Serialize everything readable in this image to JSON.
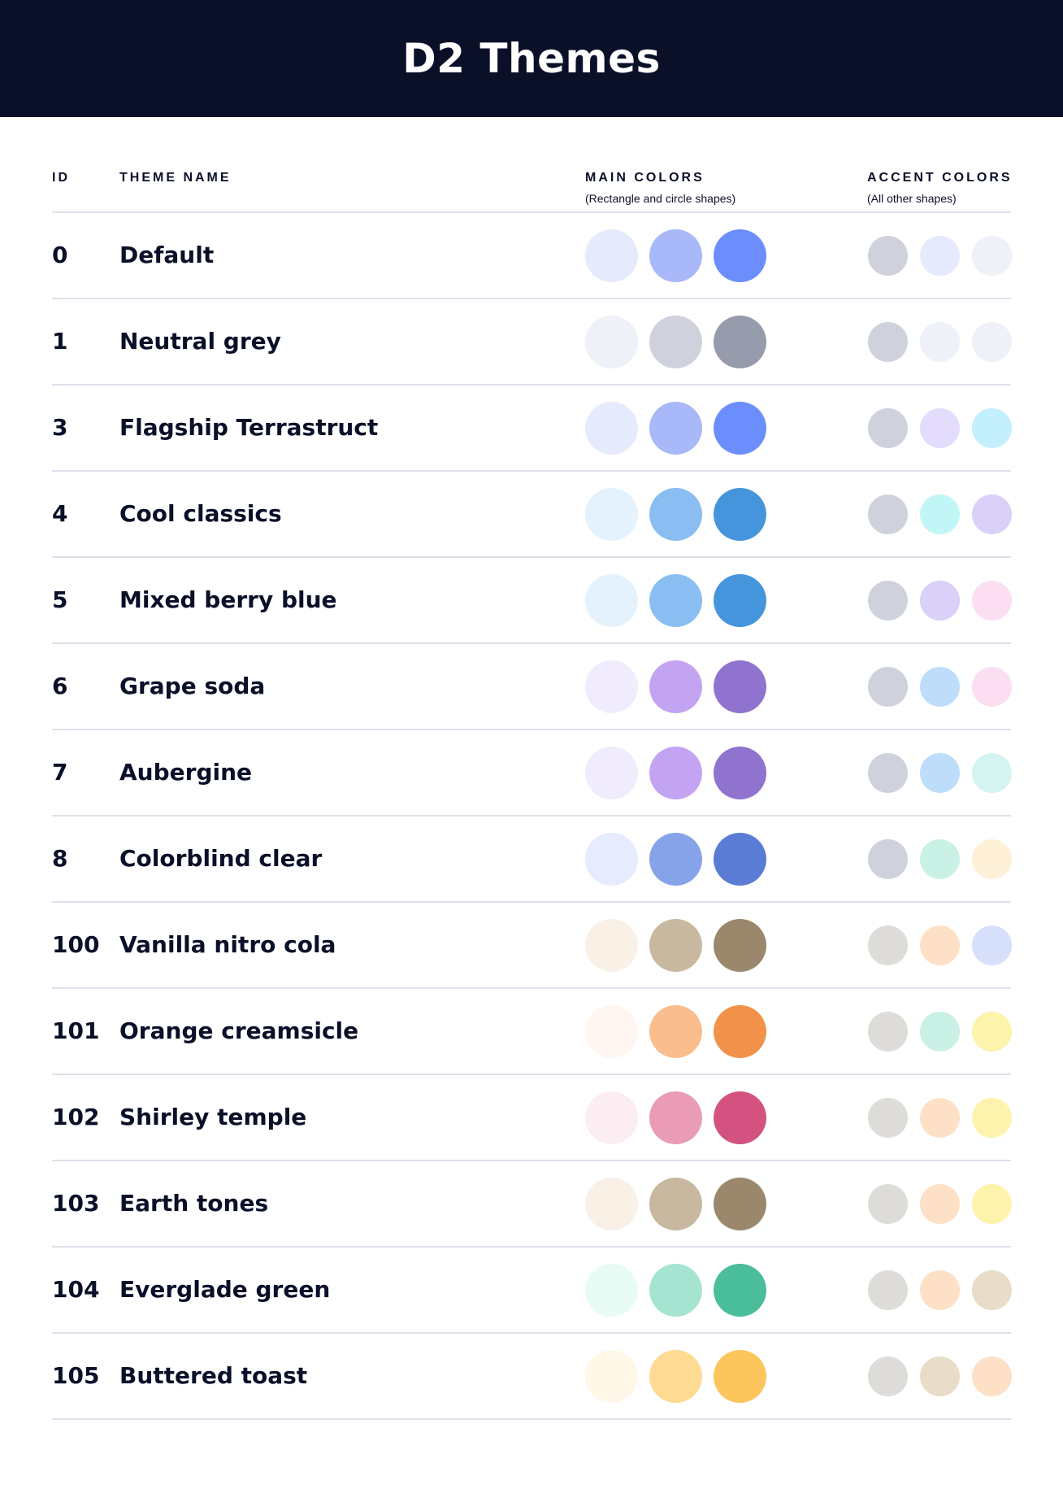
{
  "title": "D2 Themes",
  "columns": {
    "id": "ID",
    "name": "THEME NAME",
    "main": "MAIN COLORS",
    "main_sub": "(Rectangle and circle shapes)",
    "accent": "ACCENT COLORS",
    "accent_sub": "(All other shapes)"
  },
  "themes": [
    {
      "id": "0",
      "name": "Default",
      "main": [
        "#E6EAFD",
        "#A8B8F8",
        "#6C8DFC"
      ],
      "accent": [
        "#CFD2DD",
        "#E6EAFD",
        "#EEF1F8"
      ]
    },
    {
      "id": "1",
      "name": "Neutral grey",
      "main": [
        "#EEF1F8",
        "#CFD2DD",
        "#979CAD"
      ],
      "accent": [
        "#CFD2DD",
        "#EEF1F8",
        "#EEF1F8"
      ]
    },
    {
      "id": "3",
      "name": "Flagship Terrastruct",
      "main": [
        "#E6EAFD",
        "#A8B8F8",
        "#6C8DFC"
      ],
      "accent": [
        "#CFD2DD",
        "#E4DCFD",
        "#C4EFFD"
      ]
    },
    {
      "id": "4",
      "name": "Cool classics",
      "main": [
        "#E4F2FD",
        "#8ABEF2",
        "#4595DC"
      ],
      "accent": [
        "#CFD2DD",
        "#C2F6F6",
        "#DAD0F8"
      ]
    },
    {
      "id": "5",
      "name": "Mixed berry blue",
      "main": [
        "#E4F2FD",
        "#8ABEF2",
        "#4595DC"
      ],
      "accent": [
        "#CFD2DD",
        "#DAD0F8",
        "#FCDEF2"
      ]
    },
    {
      "id": "6",
      "name": "Grape soda",
      "main": [
        "#F1ECFD",
        "#C3A4F2",
        "#9072CF"
      ],
      "accent": [
        "#CFD2DD",
        "#BDDDFB",
        "#FCDEF2"
      ]
    },
    {
      "id": "7",
      "name": "Aubergine",
      "main": [
        "#F1ECFD",
        "#C3A4F2",
        "#9072CF"
      ],
      "accent": [
        "#CFD2DD",
        "#BDDDFB",
        "#D4F4F2"
      ]
    },
    {
      "id": "8",
      "name": "Colorblind clear",
      "main": [
        "#E6EBFD",
        "#86A3EA",
        "#5A7CD4"
      ],
      "accent": [
        "#CFD2DD",
        "#CAF1E6",
        "#FEF0D7"
      ]
    },
    {
      "id": "100",
      "name": "Vanilla nitro cola",
      "main": [
        "#F9F1E6",
        "#C8B8A0",
        "#9B876B"
      ],
      "accent": [
        "#DEDCD9",
        "#FEE0C6",
        "#D6E0FB"
      ]
    },
    {
      "id": "101",
      "name": "Orange creamsicle",
      "main": [
        "#FFF6F1",
        "#FABD8D",
        "#F2924A"
      ],
      "accent": [
        "#DEDCD9",
        "#CAF1E6",
        "#FEF3AD"
      ]
    },
    {
      "id": "102",
      "name": "Shirley temple",
      "main": [
        "#FCEDF2",
        "#EA9CB7",
        "#D35280"
      ],
      "accent": [
        "#DEDCD9",
        "#FEE0C6",
        "#FEF3AD"
      ]
    },
    {
      "id": "103",
      "name": "Earth tones",
      "main": [
        "#F9F1E6",
        "#C8B8A0",
        "#9B876B"
      ],
      "accent": [
        "#DEDCD9",
        "#FEE0C6",
        "#FEF3AD"
      ]
    },
    {
      "id": "104",
      "name": "Everglade green",
      "main": [
        "#E8FBF5",
        "#A6E4D2",
        "#4ABD9B"
      ],
      "accent": [
        "#DEDCD9",
        "#FEE0C6",
        "#E9DCC8"
      ]
    },
    {
      "id": "105",
      "name": "Buttered toast",
      "main": [
        "#FFF7E8",
        "#FEDA92",
        "#FCC65C"
      ],
      "accent": [
        "#DEDCD9",
        "#E9DCC8",
        "#FEE0C6"
      ]
    }
  ],
  "colors": {
    "header_bg": "#0B1029",
    "text": "#0B1029",
    "divider": "#DEE1EB"
  }
}
